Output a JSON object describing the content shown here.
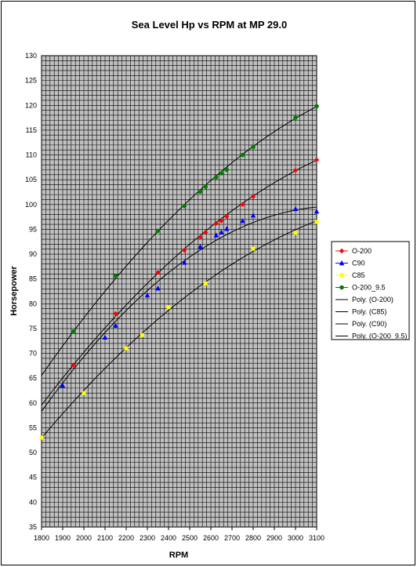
{
  "chart_data": {
    "type": "scatter",
    "title": "Sea Level Hp vs RPM at MP 29.0",
    "xlabel": "RPM",
    "ylabel": "Horsepower",
    "xlim": [
      1800,
      3100
    ],
    "ylim": [
      35,
      130
    ],
    "x_ticks": [
      1800,
      1900,
      2000,
      2100,
      2200,
      2300,
      2400,
      2500,
      2600,
      2700,
      2800,
      2900,
      3000,
      3100
    ],
    "y_ticks": [
      35,
      40,
      45,
      50,
      55,
      60,
      65,
      70,
      75,
      80,
      85,
      90,
      95,
      100,
      105,
      110,
      115,
      120,
      125,
      130
    ],
    "grid": true,
    "legend_position": "right",
    "series": [
      {
        "name": "O-200",
        "color": "#ff0000",
        "marker": "diamond",
        "x": [
          1950,
          2150,
          2350,
          2475,
          2550,
          2575,
          2625,
          2650,
          2675,
          2750,
          2800,
          3000,
          3100
        ],
        "y": [
          67.6,
          78.0,
          86.3,
          90.8,
          93.4,
          94.4,
          96.2,
          96.7,
          97.6,
          100.0,
          101.6,
          106.9,
          109.0
        ]
      },
      {
        "name": "C90",
        "color": "#0000ff",
        "marker": "triangle",
        "x": [
          1900,
          2100,
          2150,
          2300,
          2350,
          2475,
          2550,
          2625,
          2650,
          2675,
          2750,
          2800,
          3000,
          3100
        ],
        "y": [
          63.5,
          73.2,
          75.6,
          81.7,
          83.1,
          88.3,
          91.5,
          93.8,
          94.4,
          95.1,
          96.7,
          97.8,
          99.1,
          98.6
        ]
      },
      {
        "name": "C85",
        "color": "#ffff00",
        "marker": "square",
        "x": [
          1800,
          2000,
          2200,
          2275,
          2400,
          2575,
          2800,
          3000,
          3100
        ],
        "y": [
          53.0,
          62.0,
          71.0,
          73.7,
          79.3,
          84.1,
          91.1,
          94.3,
          96.5
        ]
      },
      {
        "name": "O-200_9.5",
        "color": "#008000",
        "marker": "circle",
        "x": [
          1950,
          2150,
          2350,
          2475,
          2550,
          2575,
          2625,
          2650,
          2675,
          2750,
          2800,
          3000,
          3100
        ],
        "y": [
          74.4,
          85.6,
          94.7,
          99.7,
          102.6,
          103.6,
          105.5,
          106.3,
          107.0,
          110.0,
          111.6,
          117.5,
          119.8
        ]
      }
    ],
    "trendlines": [
      {
        "name": "Poly. (O-200)",
        "color": "#000000",
        "x_range": [
          1800,
          3100
        ],
        "y_at": {
          "1800": 59.6,
          "1950": 67.6,
          "2350": 86.3,
          "2800": 101.6,
          "3100": 109.0
        }
      },
      {
        "name": "Poly. (C85)",
        "color": "#000000",
        "x_range": [
          1800,
          3100
        ],
        "y_at": {
          "1800": 53.0,
          "2200": 71.0,
          "2575": 84.1,
          "2800": 91.1,
          "3100": 96.5
        }
      },
      {
        "name": "Poly. (C90)",
        "color": "#000000",
        "x_range": [
          1800,
          3100
        ],
        "y_at": {
          "1800": 58.9,
          "2100": 73.2,
          "2475": 88.3,
          "2800": 97.8,
          "3000": 99.1,
          "3100": 98.6
        }
      },
      {
        "name": "Poly. (O-200_9.5)",
        "color": "#000000",
        "x_range": [
          1800,
          3100
        ],
        "y_at": {
          "1800": 65.5,
          "1950": 74.4,
          "2350": 94.7,
          "2800": 111.6,
          "3100": 119.8
        }
      }
    ]
  },
  "colors": {
    "plot_background": "#c0c0c0",
    "grid": "#000000"
  }
}
